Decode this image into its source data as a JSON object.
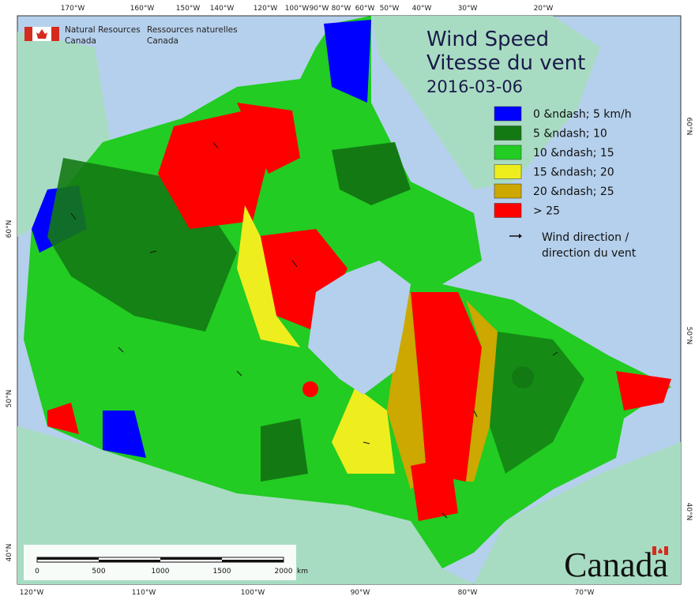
{
  "header": {
    "org_en": [
      "Natural Resources",
      "Canada"
    ],
    "org_fr": [
      "Ressources naturelles",
      "Canada"
    ]
  },
  "title": {
    "line1": "Wind Speed",
    "line2": "Vitesse du vent",
    "date": "2016-03-06"
  },
  "legend": {
    "items": [
      {
        "label": "0 &ndash; 5 km/h",
        "color": "#0000ff"
      },
      {
        "label": "5 &ndash; 10",
        "color": "#137a13"
      },
      {
        "label": "10 &ndash; 15",
        "color": "#22cc22"
      },
      {
        "label": "15 &ndash; 20",
        "color": "#eeee1e"
      },
      {
        "label": "20 &ndash; 25",
        "color": "#cca800"
      },
      {
        "label": "> 25",
        "color": "#ff0000"
      }
    ],
    "wind": [
      "Wind direction /",
      "direction du vent"
    ]
  },
  "graticule": {
    "top": [
      "170°W",
      "160°W",
      "150°W",
      "140°W",
      "120°W",
      "100°W",
      "90°W",
      "80°W",
      "60°W",
      "50°W",
      "40°W",
      "30°W",
      "20°W"
    ],
    "bottom": [
      "120°W",
      "110°W",
      "100°W",
      "90°W",
      "80°W",
      "70°W"
    ],
    "left": [
      "60°N",
      "50°N",
      "40°N"
    ],
    "right": [
      "60°N",
      "50°N",
      "40°N"
    ]
  },
  "scale": {
    "labels": [
      "0",
      "500",
      "1000",
      "1500",
      "2000"
    ],
    "unit": "km"
  },
  "wordmark": "Canada"
}
